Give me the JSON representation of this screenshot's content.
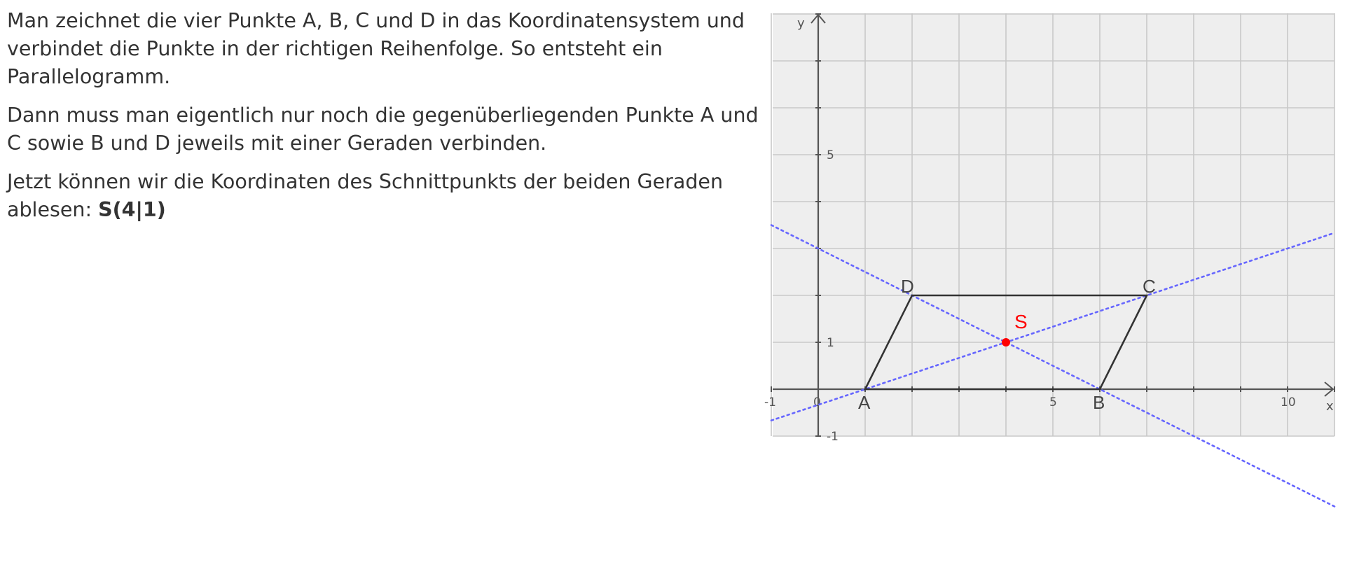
{
  "paragraphs": [
    "Man zeichnet die vier Punkte A, B, C und D in das Koordinatensystem und verbindet die Punkte in der richtigen Reihenfolge. So entsteht ein Parallelogramm.",
    "Dann muss man eigentlich nur noch die gegenüberliegenden Punkte A und C sowie B und D jeweils mit einer Geraden verbinden.",
    "Jetzt können wir die Koordinaten des Schnittpunkts der beiden Geraden ablesen: "
  ],
  "answer": "S(4|1)",
  "figure": {
    "axis_labels": {
      "x": "x",
      "y": "y"
    },
    "x_tick_labels": [
      {
        "value": -1,
        "label": "-1"
      },
      {
        "value": 0,
        "label": "0"
      },
      {
        "value": 5,
        "label": "5"
      },
      {
        "value": 10,
        "label": "10"
      }
    ],
    "y_tick_labels": [
      {
        "value": 5,
        "label": "5"
      },
      {
        "value": 1,
        "label": "1"
      },
      {
        "value": -1,
        "label": "-1"
      }
    ],
    "x_range": [
      -1,
      11
    ],
    "y_range": [
      -1,
      8
    ],
    "points": [
      {
        "name": "A",
        "x": 1,
        "y": 0
      },
      {
        "name": "B",
        "x": 6,
        "y": 0
      },
      {
        "name": "C",
        "x": 7,
        "y": 2
      },
      {
        "name": "D",
        "x": 2,
        "y": 2
      }
    ],
    "intersection": {
      "name": "S",
      "x": 4,
      "y": 1
    },
    "colors": {
      "background": "#eeeeee",
      "grid": "#c8c8c8",
      "axis": "#555555",
      "parallelogram": "#333333",
      "diagonal": "#6666ff",
      "intersection": "#ff0000",
      "point_label": "#444444"
    }
  }
}
